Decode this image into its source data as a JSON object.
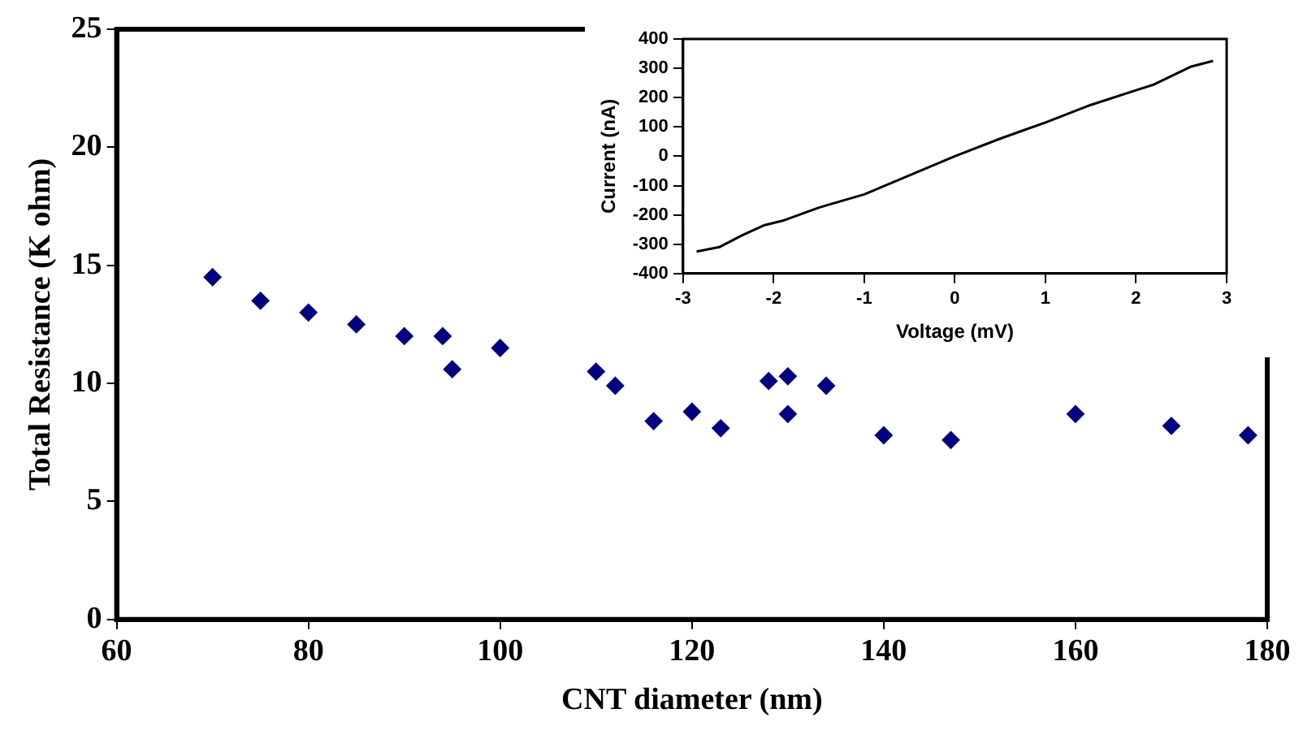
{
  "chart_data": [
    {
      "type": "scatter",
      "xlabel": "CNT diameter (nm)",
      "ylabel": "Total Resistance (K ohm)",
      "marker": "diamond",
      "grid": false,
      "legend": false,
      "xlim": [
        60,
        180
      ],
      "xticks": [
        60,
        80,
        100,
        120,
        140,
        160,
        180
      ],
      "ylim": [
        0,
        25
      ],
      "yticks": [
        0,
        5,
        10,
        15,
        20,
        25
      ],
      "x": [
        70,
        75,
        80,
        85,
        90,
        94,
        95,
        100,
        110,
        112,
        116,
        120,
        123,
        128,
        130,
        130,
        134,
        140,
        147,
        160,
        170,
        178
      ],
      "series": [
        {
          "color": "#000080",
          "values": [
            14.5,
            13.5,
            13.0,
            12.5,
            12.0,
            12.0,
            10.6,
            11.5,
            10.5,
            9.9,
            8.4,
            8.8,
            8.1,
            10.1,
            10.3,
            8.7,
            9.9,
            7.8,
            7.6,
            8.7,
            8.2,
            7.8
          ]
        }
      ]
    },
    {
      "type": "line",
      "xlabel": "Voltage (mV)",
      "ylabel": "Current (nA)",
      "marker": "none",
      "grid": false,
      "legend": false,
      "xlim": [
        -3,
        3
      ],
      "xticks": [
        -3,
        -2,
        -1,
        0,
        1,
        2,
        3
      ],
      "ylim": [
        -400,
        400
      ],
      "yticks": [
        -400,
        -300,
        -200,
        -100,
        0,
        100,
        200,
        300,
        400
      ],
      "x": [
        -2.85,
        -2.6,
        -2.35,
        -2.1,
        -1.9,
        -1.5,
        -1.0,
        -0.5,
        0,
        0.5,
        1.0,
        1.5,
        2.0,
        2.2,
        2.6,
        2.85
      ],
      "series": [
        {
          "color": "#000000",
          "values": [
            -325,
            -310,
            -270,
            -235,
            -220,
            -175,
            -130,
            -65,
            0,
            60,
            115,
            175,
            225,
            245,
            305,
            325
          ]
        }
      ]
    }
  ]
}
